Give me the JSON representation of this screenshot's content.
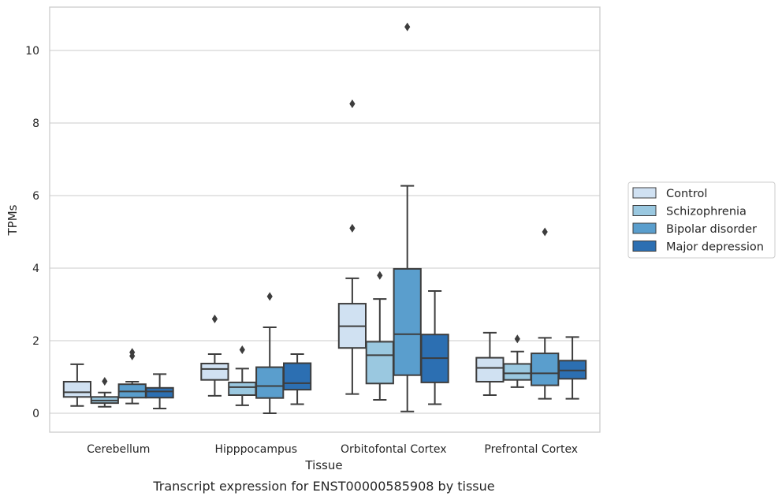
{
  "caption": "Transcript expression for ENST00000585908 by tissue",
  "chart_data": {
    "type": "box",
    "xlabel": "Tissue",
    "ylabel": "TPMs",
    "ylim": [
      -0.5,
      11.2
    ],
    "yticks": [
      0,
      2,
      4,
      6,
      8,
      10
    ],
    "grid": "horizontal",
    "legend_position": "right",
    "categories": [
      "Cerebellum",
      "Hipppocampus",
      "Orbitofontal Cortex",
      "Prefrontal Cortex"
    ],
    "series": [
      {
        "name": "Control",
        "color": "#d0e1f2",
        "boxes": [
          {
            "whisker_low": 0.2,
            "q1": 0.45,
            "median": 0.58,
            "q3": 0.87,
            "whisker_high": 1.35,
            "outliers": []
          },
          {
            "whisker_low": 0.48,
            "q1": 0.92,
            "median": 1.22,
            "q3": 1.37,
            "whisker_high": 1.63,
            "outliers": [
              2.6
            ]
          },
          {
            "whisker_low": 0.53,
            "q1": 1.8,
            "median": 2.4,
            "q3": 3.02,
            "whisker_high": 3.72,
            "outliers": [
              5.1,
              8.53
            ]
          },
          {
            "whisker_low": 0.5,
            "q1": 0.87,
            "median": 1.25,
            "q3": 1.53,
            "whisker_high": 2.22,
            "outliers": []
          }
        ]
      },
      {
        "name": "Schizophrenia",
        "color": "#9ac8e0",
        "boxes": [
          {
            "whisker_low": 0.18,
            "q1": 0.28,
            "median": 0.35,
            "q3": 0.45,
            "whisker_high": 0.57,
            "outliers": [
              0.88
            ]
          },
          {
            "whisker_low": 0.22,
            "q1": 0.5,
            "median": 0.72,
            "q3": 0.85,
            "whisker_high": 1.23,
            "outliers": [
              1.75
            ]
          },
          {
            "whisker_low": 0.37,
            "q1": 0.82,
            "median": 1.6,
            "q3": 1.97,
            "whisker_high": 3.15,
            "outliers": [
              3.8
            ]
          },
          {
            "whisker_low": 0.72,
            "q1": 0.92,
            "median": 1.1,
            "q3": 1.36,
            "whisker_high": 1.7,
            "outliers": [
              2.05
            ]
          }
        ]
      },
      {
        "name": "Bipolar disorder",
        "color": "#5a9ecd",
        "boxes": [
          {
            "whisker_low": 0.27,
            "q1": 0.43,
            "median": 0.6,
            "q3": 0.8,
            "whisker_high": 0.87,
            "outliers": [
              1.58,
              1.68
            ]
          },
          {
            "whisker_low": 0.0,
            "q1": 0.42,
            "median": 0.75,
            "q3": 1.27,
            "whisker_high": 2.37,
            "outliers": [
              3.22
            ]
          },
          {
            "whisker_low": 0.05,
            "q1": 1.05,
            "median": 2.18,
            "q3": 3.98,
            "whisker_high": 6.27,
            "outliers": [
              10.65
            ]
          },
          {
            "whisker_low": 0.4,
            "q1": 0.77,
            "median": 1.1,
            "q3": 1.65,
            "whisker_high": 2.08,
            "outliers": [
              5.0
            ]
          }
        ]
      },
      {
        "name": "Major depression",
        "color": "#2c6fb2",
        "boxes": [
          {
            "whisker_low": 0.13,
            "q1": 0.43,
            "median": 0.6,
            "q3": 0.7,
            "whisker_high": 1.08,
            "outliers": []
          },
          {
            "whisker_low": 0.25,
            "q1": 0.65,
            "median": 0.83,
            "q3": 1.38,
            "whisker_high": 1.63,
            "outliers": []
          },
          {
            "whisker_low": 0.25,
            "q1": 0.85,
            "median": 1.52,
            "q3": 2.17,
            "whisker_high": 3.37,
            "outliers": []
          },
          {
            "whisker_low": 0.4,
            "q1": 0.95,
            "median": 1.18,
            "q3": 1.45,
            "whisker_high": 2.1,
            "outliers": []
          }
        ]
      }
    ]
  }
}
